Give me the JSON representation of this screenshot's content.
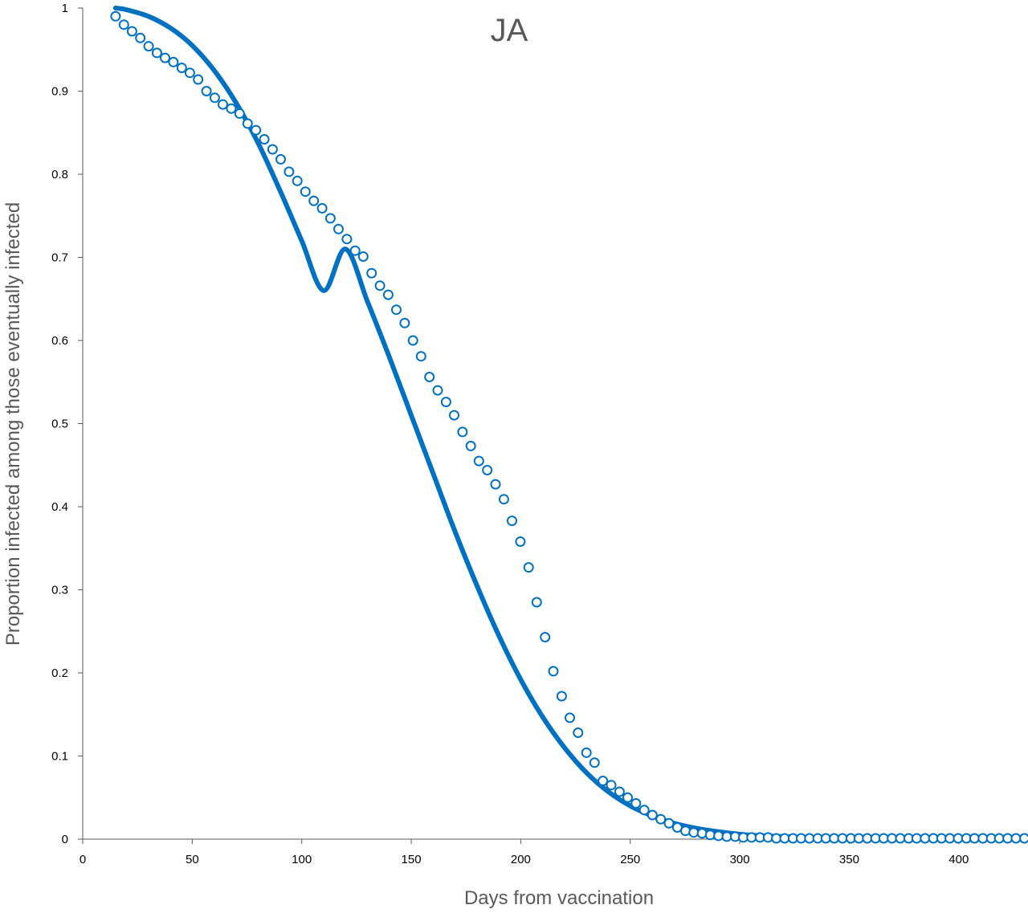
{
  "chart_data": {
    "type": "scatter",
    "title": "JA",
    "xlabel": "Days from vaccination",
    "ylabel": "Proportion infected among those eventually infected",
    "xlim": [
      0,
      430
    ],
    "ylim": [
      0,
      1
    ],
    "x_ticks": [
      "0",
      "50",
      "100",
      "150",
      "200",
      "250",
      "300",
      "350",
      "400"
    ],
    "y_ticks": [
      "0",
      "0.1",
      "0.2",
      "0.3",
      "0.4",
      "0.5",
      "0.6",
      "0.7",
      "0.8",
      "0.9",
      "1"
    ],
    "grid": false,
    "legend": "none",
    "colors": {
      "series": "#0070C0",
      "axis": "#595959"
    },
    "series": [
      {
        "type": "line",
        "x": [
          15,
          20,
          30,
          40,
          50,
          60,
          70,
          80,
          90,
          100,
          110,
          120,
          130,
          140,
          150,
          160,
          170,
          180,
          190,
          200,
          210,
          220,
          230,
          240,
          250,
          260,
          270,
          280,
          290,
          300,
          310,
          320,
          330,
          340,
          350,
          360,
          380,
          400,
          430
        ],
        "y": [
          1.0,
          0.998,
          0.99,
          0.976,
          0.955,
          0.925,
          0.886,
          0.838,
          0.781,
          0.72,
          0.66,
          0.71,
          0.647,
          0.58,
          0.51,
          0.44,
          0.37,
          0.305,
          0.245,
          0.192,
          0.147,
          0.11,
          0.08,
          0.057,
          0.04,
          0.028,
          0.019,
          0.013,
          0.009,
          0.006,
          0.004,
          0.003,
          0.002,
          0.0015,
          0.001,
          0.0008,
          0.0005,
          0.0003,
          0.0001
        ]
      },
      {
        "type": "scatter",
        "x": [
          15,
          18.8,
          22.5,
          26.3,
          30.1,
          33.9,
          37.6,
          41.4,
          45.2,
          48.9,
          52.7,
          56.5,
          60.3,
          64.0,
          67.8,
          71.6,
          75.3,
          79.1,
          82.9,
          86.7,
          90.4,
          94.2,
          98.0,
          101.7,
          105.5,
          109.3,
          113.1,
          116.8,
          120.6,
          124.4,
          128.1,
          131.9,
          135.7,
          139.5,
          143.2,
          147.0,
          150.8,
          154.5,
          158.3,
          162.1,
          165.9,
          169.6,
          173.4,
          177.2,
          180.9,
          184.7,
          188.5,
          192.3,
          196.0,
          199.8,
          203.6,
          207.3,
          211.1,
          214.9,
          218.7,
          222.4,
          226.2,
          230.0,
          233.7,
          237.5,
          241.3,
          245.1,
          248.8,
          252.6,
          256.4,
          260.1,
          263.9,
          267.7,
          271.5,
          275.2,
          279.0,
          282.8,
          286.5,
          290.3,
          294.1,
          297.9,
          301.6,
          305.4,
          309.2,
          312.9,
          316.7,
          320.5,
          324.3,
          328.0,
          331.8,
          335.6,
          339.3,
          343.1,
          346.9,
          350.7,
          354.4,
          358.2,
          362.0,
          365.7,
          369.5,
          373.3,
          377.1,
          380.8,
          384.6,
          388.4,
          392.1,
          395.9,
          399.7,
          403.5,
          407.2,
          411.0,
          414.8,
          418.5,
          422.3,
          426.1,
          430
        ],
        "y": [
          0.99,
          0.98,
          0.972,
          0.964,
          0.954,
          0.946,
          0.94,
          0.935,
          0.928,
          0.922,
          0.914,
          0.9,
          0.892,
          0.884,
          0.879,
          0.873,
          0.861,
          0.853,
          0.842,
          0.83,
          0.818,
          0.803,
          0.792,
          0.779,
          0.768,
          0.759,
          0.747,
          0.734,
          0.722,
          0.708,
          0.701,
          0.681,
          0.666,
          0.655,
          0.637,
          0.621,
          0.6,
          0.581,
          0.556,
          0.54,
          0.526,
          0.51,
          0.49,
          0.473,
          0.455,
          0.444,
          0.427,
          0.409,
          0.383,
          0.358,
          0.327,
          0.285,
          0.243,
          0.202,
          0.172,
          0.146,
          0.128,
          0.104,
          0.092,
          0.07,
          0.065,
          0.057,
          0.05,
          0.043,
          0.035,
          0.029,
          0.024,
          0.019,
          0.014,
          0.01,
          0.008,
          0.007,
          0.005,
          0.004,
          0.003,
          0.003,
          0.002,
          0.002,
          0.002,
          0.002,
          0.001,
          0.001,
          0.001,
          0.001,
          0.001,
          0.001,
          0.001,
          0.001,
          0.001,
          0.001,
          0.001,
          0.001,
          0.001,
          0.001,
          0.001,
          0.001,
          0.001,
          0.001,
          0.001,
          0.001,
          0.001,
          0.001,
          0.001,
          0.001,
          0.001,
          0.001,
          0.001,
          0.001,
          0.001,
          0.001,
          0.001
        ]
      }
    ]
  }
}
